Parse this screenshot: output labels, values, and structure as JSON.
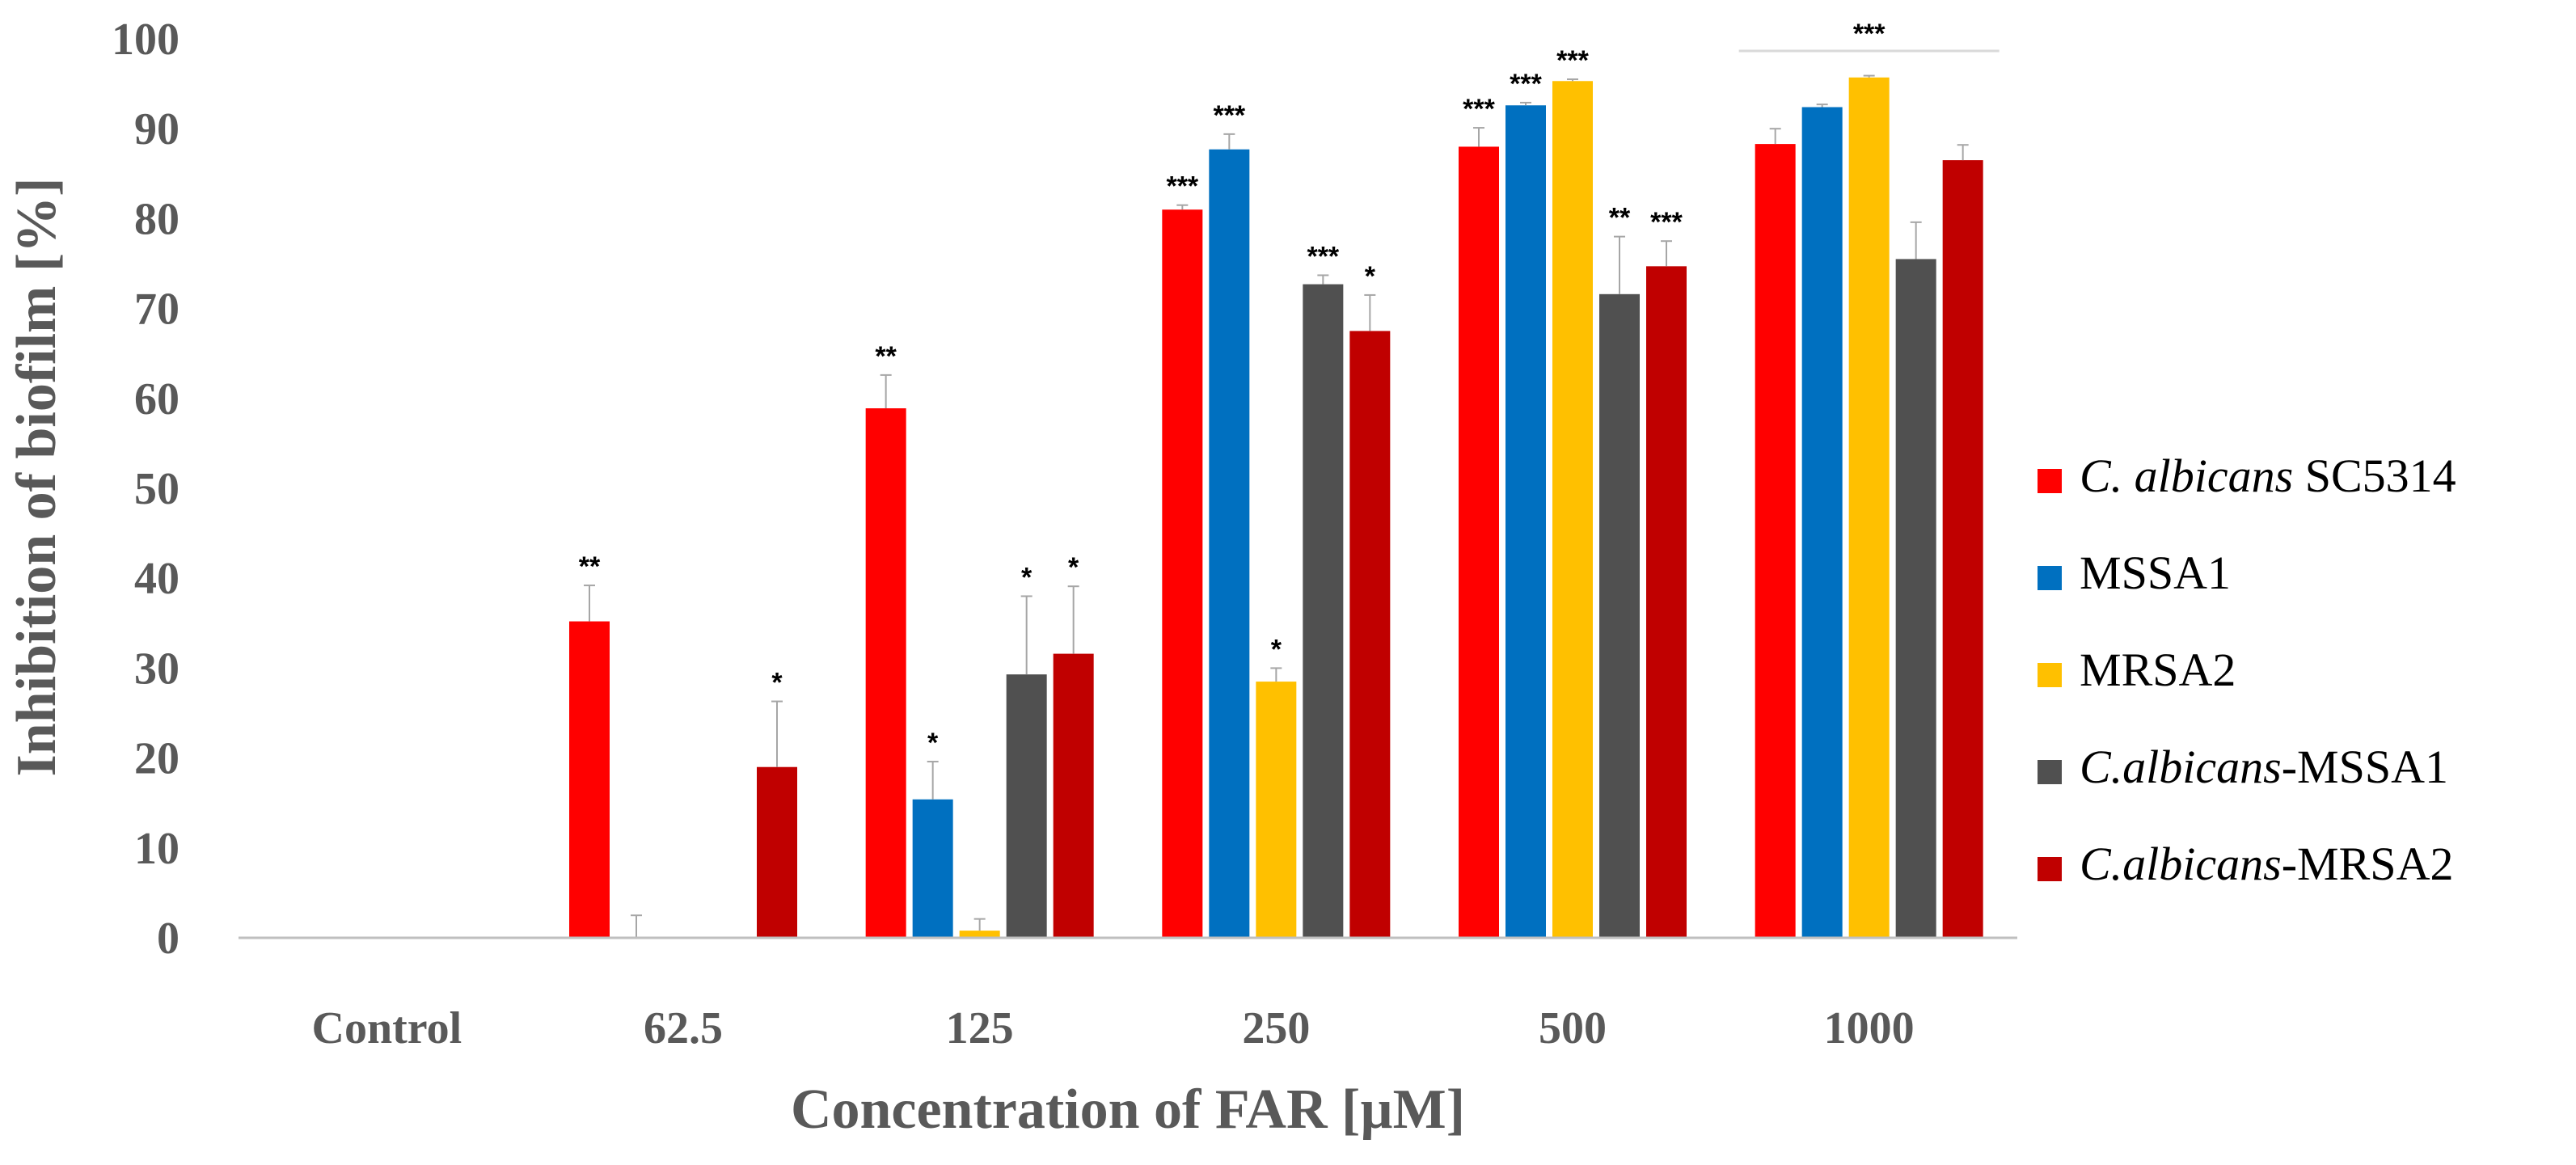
{
  "chart_data": {
    "type": "bar",
    "title": "",
    "xlabel": "Concentration of FAR [µM]",
    "ylabel": "Inhibition of biofilm [%]",
    "ylim": [
      0,
      100
    ],
    "yticks": [
      0,
      10,
      20,
      30,
      40,
      50,
      60,
      70,
      80,
      90,
      100
    ],
    "grid": false,
    "legend_position": "right",
    "categories": [
      "Control",
      "62.5",
      "125",
      "250",
      "500",
      "1000"
    ],
    "series": [
      {
        "name": "C. albicans SC5314",
        "name_italic": "C. albicans",
        "name_rest": " SC5314",
        "color": "#ff0000",
        "values": [
          0,
          35.2,
          58.9,
          81.0,
          88.0,
          88.3
        ],
        "errors": [
          0,
          4.0,
          3.7,
          0.5,
          2.1,
          1.7
        ],
        "significance": [
          "",
          "**",
          "**",
          "***",
          "***",
          ""
        ]
      },
      {
        "name": "MSSA1",
        "name_italic": "",
        "name_rest": "MSSA1",
        "color": "#0070c0",
        "values": [
          0,
          0,
          15.4,
          87.7,
          92.6,
          92.4
        ],
        "errors": [
          0,
          2.5,
          4.2,
          1.7,
          0.3,
          0.3
        ],
        "significance": [
          "",
          "",
          "*",
          "***",
          "***",
          ""
        ]
      },
      {
        "name": "MRSA2",
        "name_italic": "",
        "name_rest": "MRSA2",
        "color": "#ffc000",
        "values": [
          0,
          0,
          0.8,
          28.5,
          95.3,
          95.7
        ],
        "errors": [
          0,
          0,
          1.3,
          1.5,
          0.2,
          0.2
        ],
        "significance": [
          "",
          "",
          "",
          "*",
          "***",
          ""
        ]
      },
      {
        "name": "C.albicans-MSSA1",
        "name_italic": "C.albicans",
        "name_rest": "-MSSA1",
        "color": "#505050",
        "values": [
          0,
          0,
          29.3,
          72.7,
          71.6,
          75.5
        ],
        "errors": [
          0,
          0,
          8.7,
          1.0,
          6.4,
          4.1
        ],
        "significance": [
          "",
          "",
          "*",
          "***",
          "**",
          ""
        ]
      },
      {
        "name": "C.albicans-MRSA2",
        "name_italic": "C.albicans",
        "name_rest": "-MRSA2",
        "color": "#c00000",
        "values": [
          0,
          19.0,
          31.6,
          67.5,
          74.7,
          86.5
        ],
        "errors": [
          0,
          7.3,
          7.5,
          4.0,
          2.8,
          1.7
        ],
        "significance": [
          "",
          "*",
          "*",
          "*",
          "***",
          ""
        ]
      }
    ],
    "annotations": [
      {
        "category": "1000",
        "text": "***",
        "note": "group bracket over all bars"
      }
    ]
  }
}
